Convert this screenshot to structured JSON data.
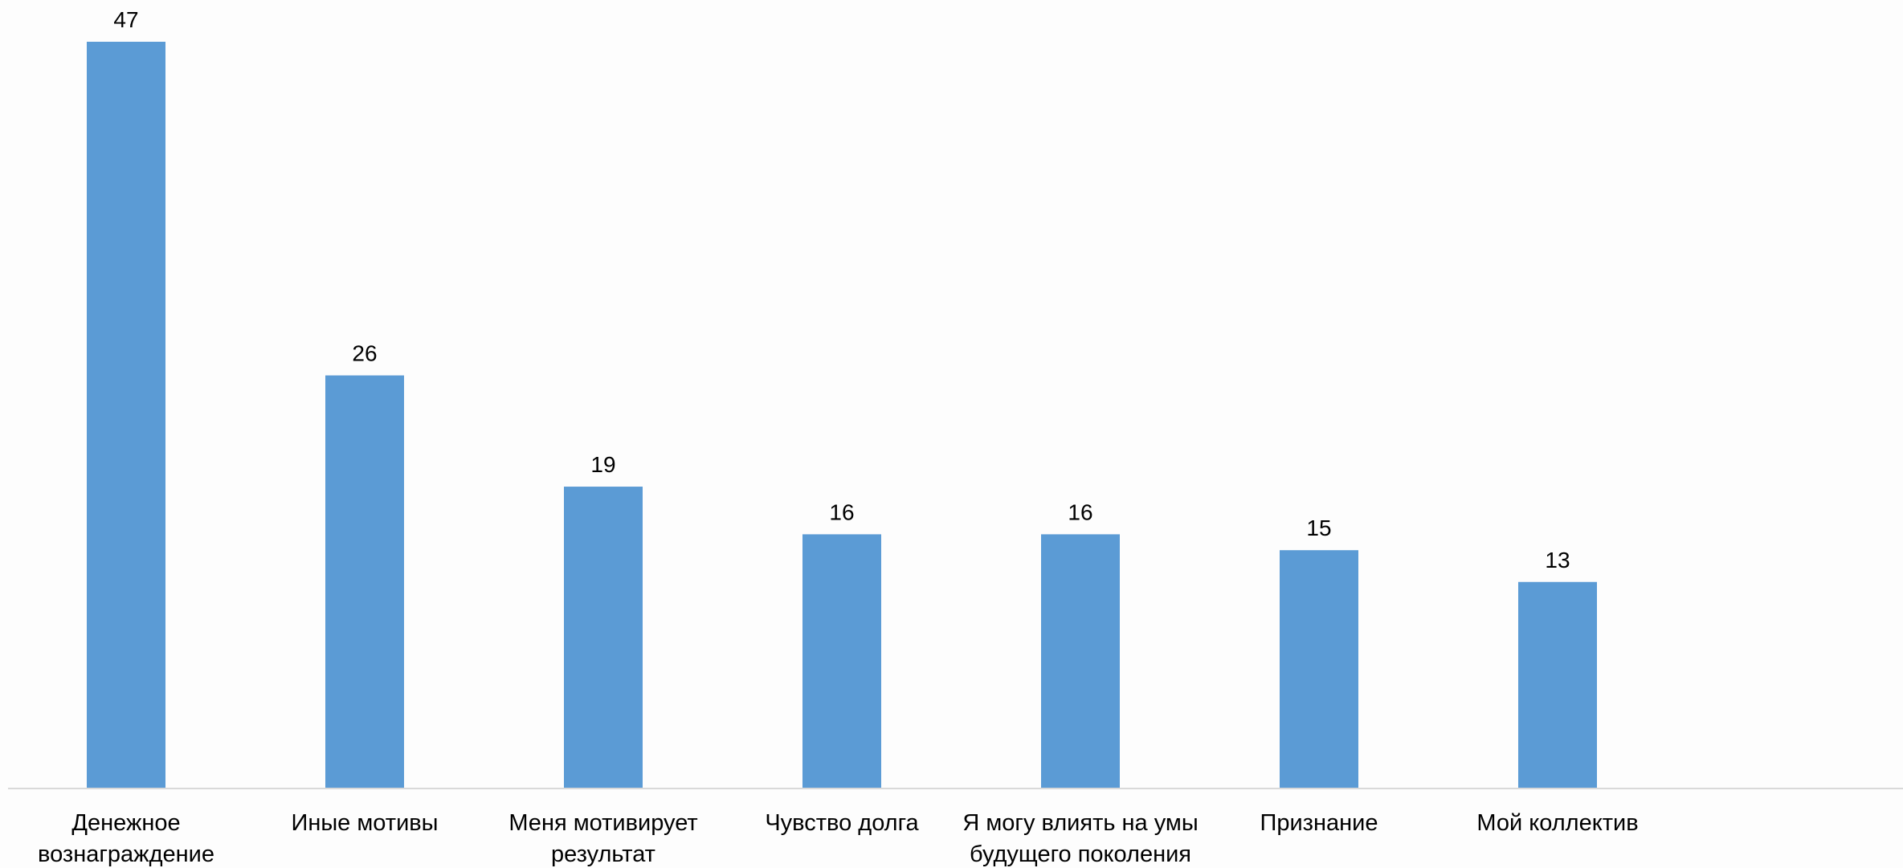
{
  "chart_data": {
    "type": "bar",
    "title": "",
    "xlabel": "",
    "ylabel": "",
    "categories": [
      [
        "Денежное",
        "вознаграждение"
      ],
      [
        "Иные мотивы"
      ],
      [
        "Меня мотивирует",
        "результат"
      ],
      [
        "Чувство долга"
      ],
      [
        "Я могу влиять на умы",
        "будущего поколения"
      ],
      [
        "Признание"
      ],
      [
        "Мой коллектив"
      ]
    ],
    "values": [
      47,
      26,
      19,
      16,
      16,
      15,
      13
    ],
    "data_labels": [
      "47",
      "26",
      "19",
      "16",
      "16",
      "15",
      "13"
    ],
    "ylim": [
      0,
      47
    ],
    "grid": false,
    "legend": "none",
    "colors": {
      "bar": "#5b9bd5",
      "axis": "#d9d9d9",
      "text": "#000000",
      "background": "#fdfdfd"
    }
  }
}
